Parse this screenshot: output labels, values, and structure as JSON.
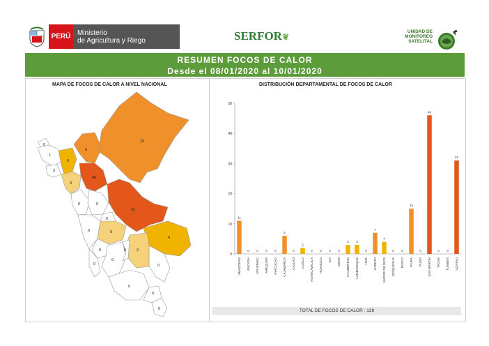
{
  "header": {
    "peru_label": "PERÚ",
    "ministry_label": "Ministerio\nde Agricultura y Riego",
    "serfor_label": "SERFOR",
    "unit_label": "UNIDAD DE\nMONITOREO\nSATELITAL"
  },
  "banner": {
    "title": "RESUMEN FOCOS DE CALOR",
    "subtitle": "Desde el 08/01/2020 al 10/01/2020"
  },
  "map": {
    "title": "MAPA DE FOCOS DE CALOR A NIVEL NACIONAL",
    "labels": [
      "0",
      "1",
      "6",
      "3",
      "3",
      "6",
      "46",
      "31",
      "0",
      "0",
      "0",
      "0",
      "0",
      "0",
      "0",
      "0",
      "15",
      "0",
      "0",
      "0",
      "4",
      "2",
      "0",
      "0"
    ]
  },
  "colors": {
    "very_low": "#f5d27a",
    "low": "#f0b400",
    "mid": "#f0902b",
    "high": "#e4571a",
    "bar_low": "#f0b400",
    "bar_mid": "#f0902b",
    "bar_high": "#e4571a",
    "banner": "#5c9c3a"
  },
  "chart_data": {
    "type": "bar",
    "title": "DISTRIBUCIÓN DEPARTAMENTAL DE FOCOS DE CALOR",
    "categories": [
      "AMAZONAS",
      "ANCASH",
      "APURIMAC",
      "AREQUIPA",
      "AYACUCHO",
      "CAJAMARCA",
      "CALLAO",
      "CUSCO",
      "HUANCAVELICA",
      "HUANUCO",
      "ICA",
      "JUNIN",
      "LA LIBERTAD",
      "LAMBAYEQUE",
      "LIMA",
      "LORETO",
      "MADRE DE DIOS",
      "MOQUEGUA",
      "PASCO",
      "PIURA",
      "PUNO",
      "SAN MARTIN",
      "TACNA",
      "TUMBES",
      "UCAYALI"
    ],
    "values": [
      11,
      0,
      0,
      0,
      0,
      6,
      0,
      2,
      0,
      0,
      0,
      0,
      3,
      3,
      0,
      7,
      4,
      0,
      0,
      15,
      0,
      46,
      0,
      0,
      31
    ],
    "ylim": [
      0,
      50
    ],
    "yticks": [
      0,
      10,
      20,
      30,
      40,
      50
    ],
    "total_label": "TOTAL DE FOCOS DE CALOR : 128"
  }
}
